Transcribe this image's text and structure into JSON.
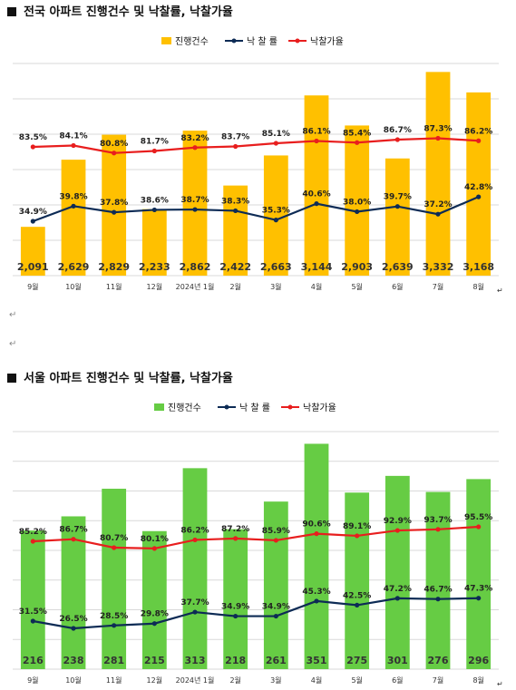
{
  "charts": {
    "national": {
      "title": "전국 아파트 진행건수 및 낙찰률, 낙찰가율",
      "legend": {
        "bars": "진행건수",
        "rate": "낙 찰 률",
        "price": "낙찰가율"
      },
      "colors": {
        "bars": "#FFC000",
        "rate": "#0D2B55",
        "price": "#E81E1E"
      }
    },
    "seoul": {
      "title": "서울 아파트 진행건수 및 낙찰률, 낙찰가율",
      "legend": {
        "bars": "진행건수",
        "rate": "낙 찰 률",
        "price": "낙찰가율"
      },
      "colors": {
        "bars": "#66CC44",
        "rate": "#0D2B55",
        "price": "#E81E1E"
      }
    }
  },
  "chart_data": [
    {
      "type": "bar",
      "title": "전국 아파트 진행건수 및 낙찰률, 낙찰가율",
      "categories": [
        "9월",
        "10월",
        "11월",
        "12월",
        "2024년 1월",
        "2월",
        "3월",
        "4월",
        "5월",
        "6월",
        "7월",
        "8월"
      ],
      "series": [
        {
          "name": "진행건수",
          "type": "bar",
          "values": [
            2091,
            2629,
            2829,
            2233,
            2862,
            2422,
            2663,
            3144,
            2903,
            2639,
            3332,
            3168
          ],
          "labels": [
            "2,091",
            "2,629",
            "2,829",
            "2,233",
            "2,862",
            "2,422",
            "2,663",
            "3,144",
            "2,903",
            "2,639",
            "3,332",
            "3,168"
          ]
        },
        {
          "name": "낙 찰 률",
          "type": "line",
          "values": [
            34.9,
            39.8,
            37.8,
            38.6,
            38.7,
            38.3,
            35.3,
            40.6,
            38.0,
            39.7,
            37.2,
            42.8
          ],
          "labels": [
            "34.9%",
            "39.8%",
            "37.8%",
            "38.6%",
            "38.7%",
            "38.3%",
            "35.3%",
            "40.6%",
            "38.0%",
            "39.7%",
            "37.2%",
            "42.8%"
          ]
        },
        {
          "name": "낙찰가율",
          "type": "line",
          "values": [
            83.5,
            84.1,
            80.8,
            81.7,
            83.2,
            83.7,
            85.1,
            86.1,
            85.4,
            86.7,
            87.3,
            86.2
          ],
          "labels": [
            "83.5%",
            "84.1%",
            "80.8%",
            "81.7%",
            "83.2%",
            "83.7%",
            "85.1%",
            "86.1%",
            "85.4%",
            "86.7%",
            "87.3%",
            "86.2%"
          ]
        }
      ],
      "legend": "top-center",
      "grid": true
    },
    {
      "type": "bar",
      "title": "서울 아파트 진행건수 및 낙찰률, 낙찰가율",
      "categories": [
        "9월",
        "10월",
        "11월",
        "12월",
        "2024년 1월",
        "2월",
        "3월",
        "4월",
        "5월",
        "6월",
        "7월",
        "8월"
      ],
      "series": [
        {
          "name": "진행건수",
          "type": "bar",
          "values": [
            216,
            238,
            281,
            215,
            313,
            218,
            261,
            351,
            275,
            301,
            276,
            296
          ],
          "labels": [
            "216",
            "238",
            "281",
            "215",
            "313",
            "218",
            "261",
            "351",
            "275",
            "301",
            "276",
            "296"
          ]
        },
        {
          "name": "낙 찰 률",
          "type": "line",
          "values": [
            31.5,
            26.5,
            28.5,
            29.8,
            37.7,
            34.9,
            34.9,
            45.3,
            42.5,
            47.2,
            46.7,
            47.3
          ],
          "labels": [
            "31.5%",
            "26.5%",
            "28.5%",
            "29.8%",
            "37.7%",
            "34.9%",
            "34.9%",
            "45.3%",
            "42.5%",
            "47.2%",
            "46.7%",
            "47.3%"
          ]
        },
        {
          "name": "낙찰가율",
          "type": "line",
          "values": [
            85.2,
            86.7,
            80.7,
            80.1,
            86.2,
            87.2,
            85.9,
            90.6,
            89.1,
            92.9,
            93.7,
            95.5
          ],
          "labels": [
            "85.2%",
            "86.7%",
            "80.7%",
            "80.1%",
            "86.2%",
            "87.2%",
            "85.9%",
            "90.6%",
            "89.1%",
            "92.9%",
            "93.7%",
            "95.5%"
          ]
        }
      ],
      "legend": "top-center",
      "grid": true
    }
  ]
}
